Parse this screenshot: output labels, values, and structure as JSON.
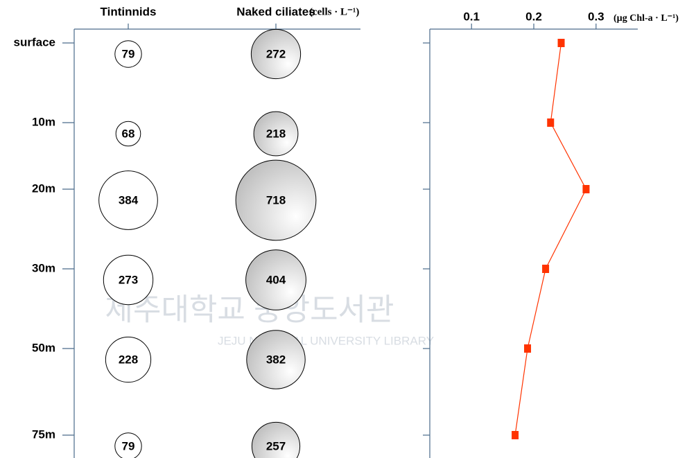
{
  "chart_data": [
    {
      "type": "bubble",
      "categories": [
        "surface",
        "10m",
        "20m",
        "30m",
        "50m",
        "75m"
      ],
      "series": [
        {
          "name": "Tintinnids",
          "color": "#ffffff",
          "values": [
            79,
            68,
            384,
            273,
            228,
            79
          ]
        },
        {
          "name": "Naked ciliates",
          "color": "#cccccc",
          "values": [
            272,
            218,
            718,
            404,
            382,
            257
          ]
        }
      ],
      "unit_label": "(cells · L⁻¹)"
    },
    {
      "type": "line",
      "series": [
        {
          "color": "#ff3300",
          "values": [
            0.244,
            0.227,
            0.284,
            0.219,
            0.19,
            0.17
          ]
        }
      ],
      "xlim": [
        0.033,
        0.367
      ],
      "xticks": [
        0.1,
        0.2,
        0.3
      ],
      "unit_label": "(µg Chl-a · L⁻¹)"
    }
  ],
  "watermark": {
    "title": "제주대학교 중앙도서관",
    "subtitle": "JEJU NATIONAL UNIVERSITY LIBRARY"
  }
}
